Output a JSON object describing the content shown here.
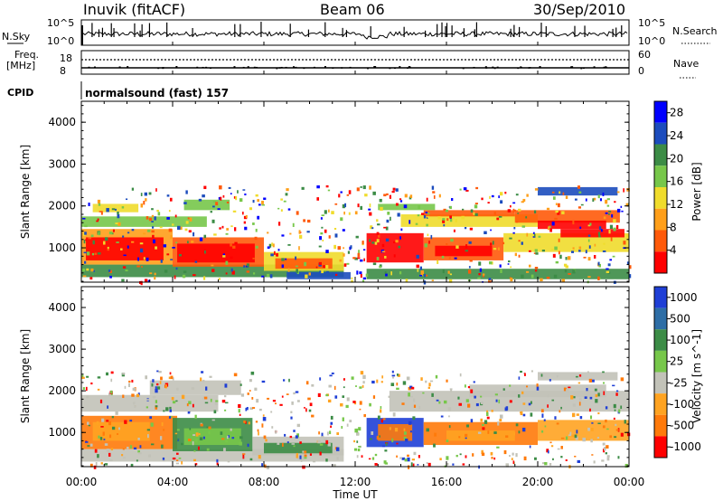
{
  "header": {
    "station": "Inuvik (fitACF)",
    "beam": "Beam 06",
    "date": "30/Sep/2010"
  },
  "top_panels": {
    "nsky_label": "N.Sky",
    "nsky_ticks": [
      "10^5",
      "10^0"
    ],
    "nsearch_label": "N.Search",
    "freq_label_1": "Freq.",
    "freq_label_2": "[MHz]",
    "freq_ticks": [
      "18",
      "8"
    ],
    "nave_label": "Nave",
    "nave_ticks": [
      "60",
      "0"
    ],
    "cpid_label": "CPID",
    "cpid_text": "normalsound (fast) 157"
  },
  "chart_data": [
    {
      "type": "heatmap",
      "title": "",
      "xlabel": "Time UT",
      "ylabel": "Slant Range [km]",
      "x_ticks": [
        "00:00",
        "04:00",
        "08:00",
        "12:00",
        "16:00",
        "20:00",
        "00:00"
      ],
      "xlim_hours": [
        0,
        24
      ],
      "y_ticks": [
        1000,
        2000,
        3000,
        4000
      ],
      "ylim": [
        180,
        4500
      ],
      "colorbar": {
        "label": "Power [dB]",
        "ticks": [
          4,
          8,
          12,
          16,
          20,
          24,
          28
        ],
        "range": [
          0,
          30
        ],
        "colors": [
          "#0000ff",
          "#1c4cbd",
          "#3c8c46",
          "#77c74a",
          "#f0dc2c",
          "#ff9f1a",
          "#ff5a0a",
          "#ff0000"
        ]
      }
    },
    {
      "type": "heatmap",
      "title": "",
      "xlabel": "Time UT",
      "ylabel": "Slant Range [km]",
      "x_ticks": [
        "00:00",
        "04:00",
        "08:00",
        "12:00",
        "16:00",
        "20:00",
        "00:00"
      ],
      "xlim_hours": [
        0,
        24
      ],
      "y_ticks": [
        1000,
        2000,
        3000,
        4000
      ],
      "ylim": [
        180,
        4500
      ],
      "colorbar": {
        "label": "Velocity [m s^-1]",
        "ticks": [
          "1000",
          "500",
          "100",
          "25",
          "-25",
          "-100",
          "-500",
          "-1000"
        ],
        "colors": [
          "#1f3fd6",
          "#2e6ea6",
          "#3c8c46",
          "#77c74a",
          "#c2c2b8",
          "#ffa321",
          "#ff7a0a",
          "#ff0000"
        ]
      }
    }
  ]
}
